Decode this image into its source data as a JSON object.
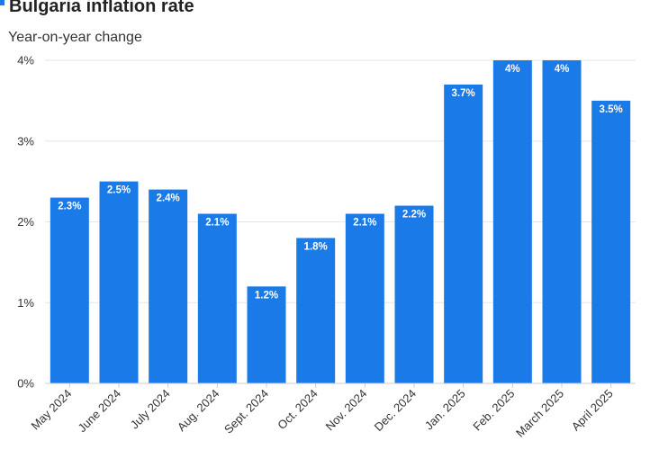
{
  "chart_data": {
    "type": "bar",
    "title": "Bulgaria inflation rate",
    "subtitle": "Year-on-year change",
    "categories": [
      "May 2024",
      "June 2024",
      "July 2024",
      "Aug. 2024",
      "Sept. 2024",
      "Oct. 2024",
      "Nov. 2024",
      "Dec. 2024",
      "Jan. 2025",
      "Feb. 2025",
      "March 2025",
      "April 2025"
    ],
    "values": [
      2.3,
      2.5,
      2.4,
      2.1,
      1.2,
      1.8,
      2.1,
      2.2,
      3.7,
      4,
      4,
      3.5
    ],
    "data_labels": [
      "2.3%",
      "2.5%",
      "2.4%",
      "2.1%",
      "1.2%",
      "1.8%",
      "2.1%",
      "2.2%",
      "3.7%",
      "4%",
      "4%",
      "3.5%"
    ],
    "ylim": [
      0,
      4
    ],
    "yticks": [
      0,
      1,
      2,
      3,
      4
    ],
    "ytick_labels": [
      "0%",
      "1%",
      "2%",
      "3%",
      "4%"
    ],
    "grid": true,
    "colors": {
      "bar": "#1a7ae8",
      "accent": "#1a7ae8",
      "grid": "#e6e6e6",
      "baseline": "#cccccc"
    }
  }
}
